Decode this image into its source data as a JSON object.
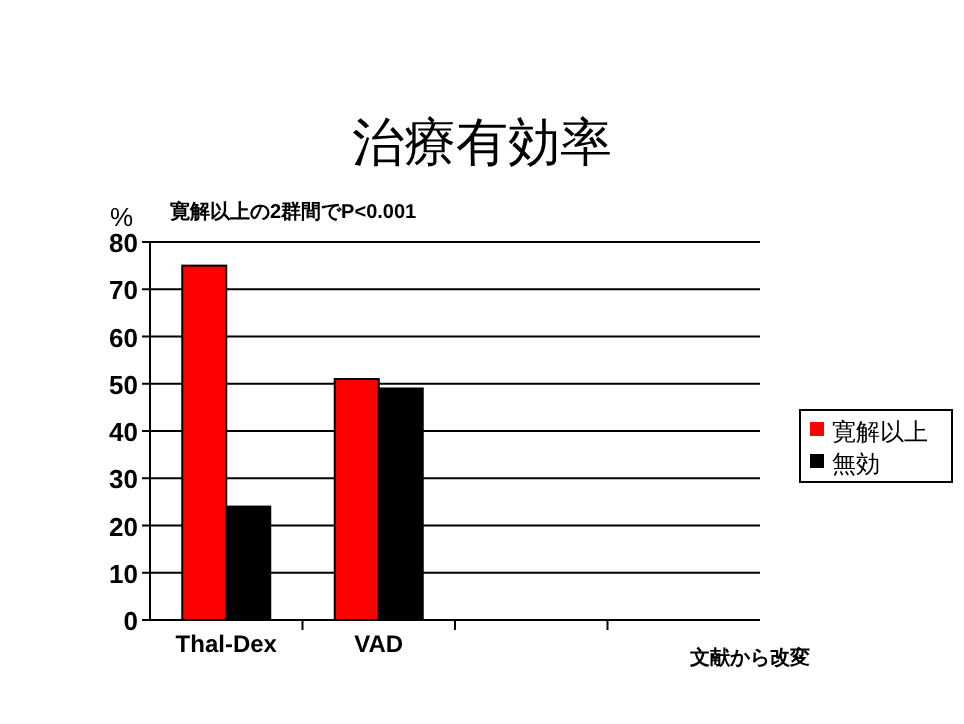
{
  "chart_data": {
    "type": "bar",
    "title": "治療有効率",
    "ylabel": "%",
    "categories": [
      "Thal-Dex",
      "VAD",
      null,
      null
    ],
    "series": [
      {
        "name": "寛解以上",
        "color": "#ff0000",
        "values": [
          75,
          51,
          null,
          null
        ]
      },
      {
        "name": "無効",
        "color": "#000000",
        "values": [
          24,
          49,
          null,
          null
        ]
      }
    ],
    "ylim": [
      0,
      80
    ],
    "yticks": [
      0,
      10,
      20,
      30,
      40,
      50,
      60,
      70,
      80
    ],
    "grid": "y",
    "legend": "right",
    "annotations": [
      "寛解以上の2群間でP<0.001",
      "文献から改変"
    ]
  }
}
